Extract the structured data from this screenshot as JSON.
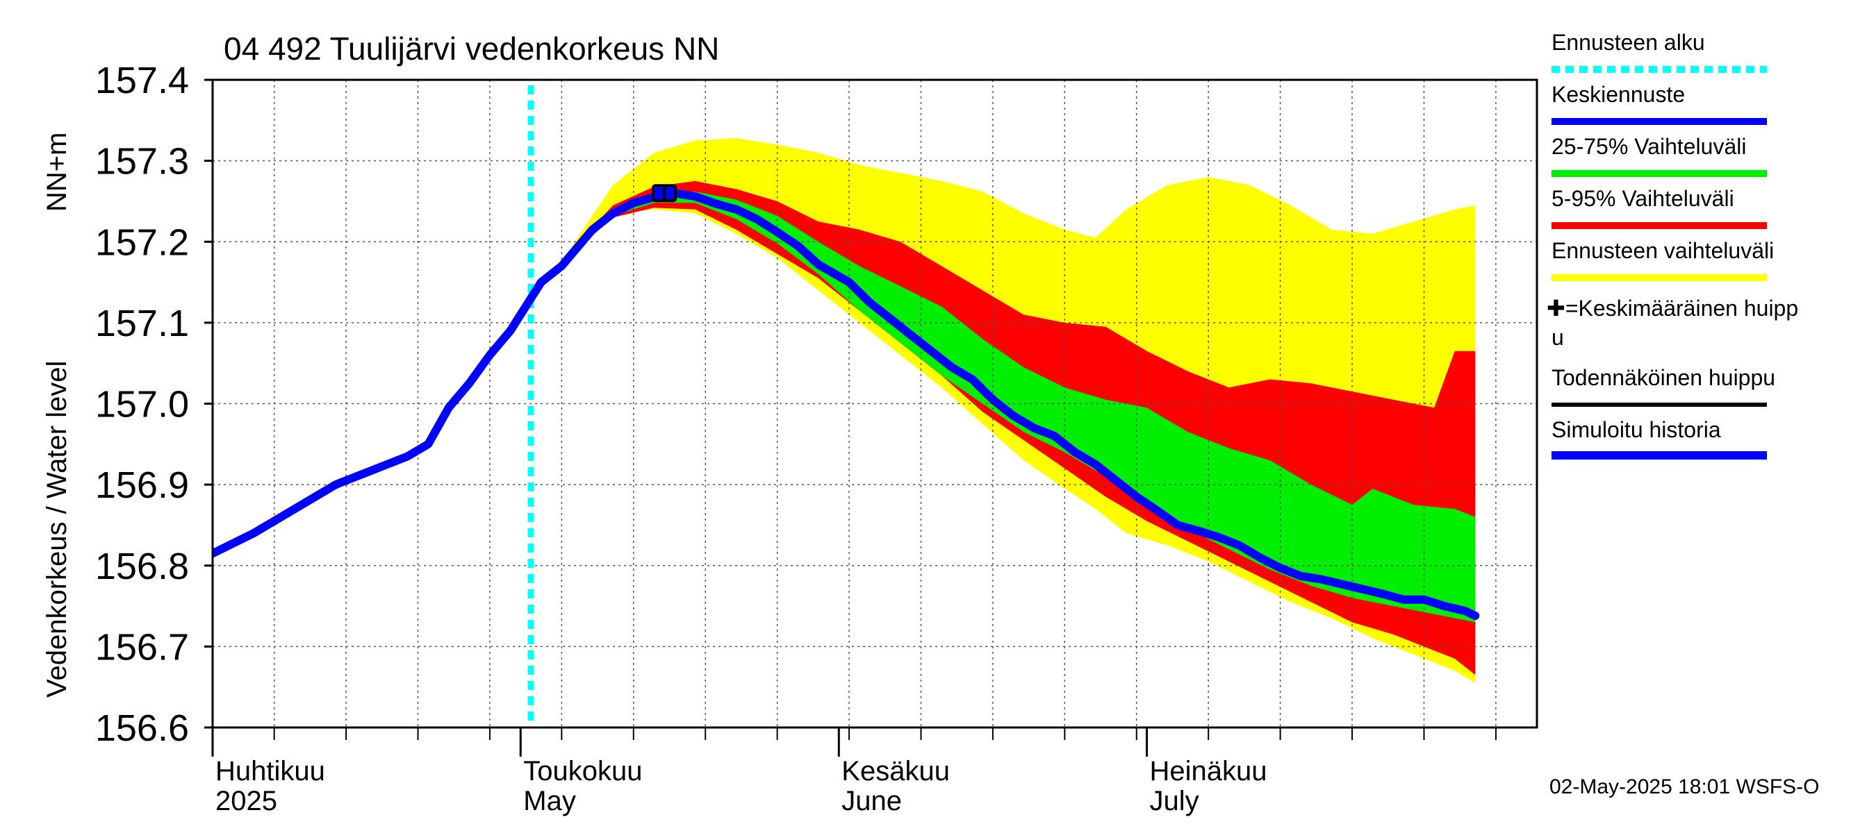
{
  "chart_data": {
    "type": "area",
    "title": "04 492 Tuulijärvi vedenkorkeus NN",
    "ylabel": "Vedenkorkeus / Water level",
    "yunit": "NN+m",
    "ylim": [
      156.6,
      157.4
    ],
    "yticks": [
      "156.6",
      "156.7",
      "156.8",
      "156.9",
      "157.0",
      "157.1",
      "157.2",
      "157.3",
      "157.4"
    ],
    "xlim": [
      "2025-04-01",
      "2025-08-08"
    ],
    "month_labels": [
      {
        "date": "2025-04-01",
        "fi": "Huhtikuu",
        "en": "2025"
      },
      {
        "date": "2025-05-01",
        "fi": "Toukokuu",
        "en": "May"
      },
      {
        "date": "2025-06-01",
        "fi": "Kesäkuu",
        "en": "June"
      },
      {
        "date": "2025-07-01",
        "fi": "Heinäkuu",
        "en": "July"
      }
    ],
    "grid": true,
    "legend_position": "right",
    "forecast_start": "2025-05-02",
    "timestamp": "02-May-2025 18:01 WSFS-O",
    "legend": [
      {
        "label": "Ennusteen alku",
        "color": "#00ffff",
        "style": "dotted"
      },
      {
        "label": "Keskiennuste",
        "color": "#0000ff",
        "style": "solid"
      },
      {
        "label": "25-75% Vaihteluväli",
        "color": "#00ee00",
        "style": "solid"
      },
      {
        "label": "5-95% Vaihteluväli",
        "color": "#ff0000",
        "style": "solid"
      },
      {
        "label": "Ennusteen vaihteluväli",
        "color": "#ffff00",
        "style": "solid"
      },
      {
        "label": "✚=Keskimääräinen huippu",
        "color": "#000000",
        "style": "none"
      },
      {
        "label": "Todennäköinen huippu",
        "color": "#000000",
        "style": "solid"
      },
      {
        "label": "Simuloitu historia",
        "color": "#0000ff",
        "style": "solid"
      }
    ],
    "series": [
      {
        "name": "Simuloitu historia",
        "color": "#0000ff",
        "points": [
          [
            "2025-04-01",
            156.815
          ],
          [
            "2025-04-05",
            156.84
          ],
          [
            "2025-04-09",
            156.87
          ],
          [
            "2025-04-13",
            156.9
          ],
          [
            "2025-04-17",
            156.92
          ],
          [
            "2025-04-20",
            156.935
          ],
          [
            "2025-04-22",
            156.95
          ],
          [
            "2025-04-24",
            156.995
          ],
          [
            "2025-04-26",
            157.025
          ],
          [
            "2025-04-28",
            157.06
          ],
          [
            "2025-04-30",
            157.09
          ],
          [
            "2025-05-02",
            157.13
          ],
          [
            "2025-05-03",
            157.15
          ],
          [
            "2025-05-05",
            157.17
          ],
          [
            "2025-05-06",
            157.185
          ]
        ]
      },
      {
        "name": "Keskiennuste",
        "color": "#0000ff",
        "points": [
          [
            "2025-05-06",
            157.185
          ],
          [
            "2025-05-08",
            157.215
          ],
          [
            "2025-05-10",
            157.235
          ],
          [
            "2025-05-12",
            157.248
          ],
          [
            "2025-05-14",
            157.255
          ],
          [
            "2025-05-16",
            157.26
          ],
          [
            "2025-05-18",
            157.256
          ],
          [
            "2025-05-20",
            157.247
          ],
          [
            "2025-05-22",
            157.24
          ],
          [
            "2025-05-24",
            157.228
          ],
          [
            "2025-05-26",
            157.212
          ],
          [
            "2025-05-28",
            157.195
          ],
          [
            "2025-05-30",
            157.172
          ],
          [
            "2025-06-02",
            157.15
          ],
          [
            "2025-06-04",
            157.125
          ],
          [
            "2025-06-06",
            157.105
          ],
          [
            "2025-06-08",
            157.085
          ],
          [
            "2025-06-10",
            157.065
          ],
          [
            "2025-06-12",
            157.045
          ],
          [
            "2025-06-14",
            157.03
          ],
          [
            "2025-06-16",
            157.005
          ],
          [
            "2025-06-18",
            156.985
          ],
          [
            "2025-06-20",
            156.97
          ],
          [
            "2025-06-22",
            156.96
          ],
          [
            "2025-06-24",
            156.94
          ],
          [
            "2025-06-26",
            156.925
          ],
          [
            "2025-06-28",
            156.905
          ],
          [
            "2025-06-30",
            156.885
          ],
          [
            "2025-07-02",
            156.868
          ],
          [
            "2025-07-04",
            156.85
          ],
          [
            "2025-07-06",
            156.843
          ],
          [
            "2025-07-08",
            156.835
          ],
          [
            "2025-07-10",
            156.825
          ],
          [
            "2025-07-12",
            156.81
          ],
          [
            "2025-07-14",
            156.797
          ],
          [
            "2025-07-16",
            156.787
          ],
          [
            "2025-07-18",
            156.783
          ],
          [
            "2025-07-20",
            156.777
          ],
          [
            "2025-07-22",
            156.771
          ],
          [
            "2025-07-24",
            156.765
          ],
          [
            "2025-07-26",
            156.758
          ],
          [
            "2025-07-28",
            156.758
          ],
          [
            "2025-07-30",
            156.75
          ],
          [
            "2025-08-01",
            156.744
          ],
          [
            "2025-08-02",
            156.738
          ]
        ]
      }
    ],
    "bands": [
      {
        "name": "Ennusteen vaihteluväli",
        "color": "#ffff00",
        "points": [
          [
            "2025-05-06",
            157.195,
            157.185
          ],
          [
            "2025-05-10",
            157.27,
            157.235
          ],
          [
            "2025-05-14",
            157.31,
            157.24
          ],
          [
            "2025-05-18",
            157.325,
            157.235
          ],
          [
            "2025-05-22",
            157.328,
            157.21
          ],
          [
            "2025-05-26",
            157.32,
            157.18
          ],
          [
            "2025-05-30",
            157.31,
            157.14
          ],
          [
            "2025-06-03",
            157.295,
            157.1
          ],
          [
            "2025-06-07",
            157.285,
            157.06
          ],
          [
            "2025-06-11",
            157.275,
            157.02
          ],
          [
            "2025-06-15",
            157.262,
            156.975
          ],
          [
            "2025-06-19",
            157.235,
            156.93
          ],
          [
            "2025-06-23",
            157.215,
            156.895
          ],
          [
            "2025-06-26",
            157.205,
            156.87
          ],
          [
            "2025-06-29",
            157.24,
            156.84
          ],
          [
            "2025-07-03",
            157.27,
            156.825
          ],
          [
            "2025-07-07",
            157.28,
            156.805
          ],
          [
            "2025-07-11",
            157.27,
            156.78
          ],
          [
            "2025-07-15",
            157.245,
            156.755
          ],
          [
            "2025-07-19",
            157.215,
            156.735
          ],
          [
            "2025-07-23",
            157.21,
            156.71
          ],
          [
            "2025-07-27",
            157.225,
            156.69
          ],
          [
            "2025-07-31",
            157.24,
            156.67
          ],
          [
            "2025-08-02",
            157.245,
            156.655
          ]
        ]
      },
      {
        "name": "5-95% Vaihteluväli",
        "color": "#ff0000",
        "points": [
          [
            "2025-05-06",
            157.19,
            157.185
          ],
          [
            "2025-05-10",
            157.245,
            157.23
          ],
          [
            "2025-05-14",
            157.268,
            157.242
          ],
          [
            "2025-05-18",
            157.275,
            157.24
          ],
          [
            "2025-05-22",
            157.265,
            157.215
          ],
          [
            "2025-05-26",
            157.25,
            157.185
          ],
          [
            "2025-05-30",
            157.225,
            157.155
          ],
          [
            "2025-06-03",
            157.215,
            157.115
          ],
          [
            "2025-06-07",
            157.2,
            157.075
          ],
          [
            "2025-06-11",
            157.17,
            157.035
          ],
          [
            "2025-06-15",
            157.14,
            156.99
          ],
          [
            "2025-06-19",
            157.11,
            156.955
          ],
          [
            "2025-06-23",
            157.1,
            156.92
          ],
          [
            "2025-06-27",
            157.095,
            156.885
          ],
          [
            "2025-07-01",
            157.065,
            156.855
          ],
          [
            "2025-07-05",
            157.04,
            156.83
          ],
          [
            "2025-07-09",
            157.02,
            156.805
          ],
          [
            "2025-07-13",
            157.03,
            156.78
          ],
          [
            "2025-07-17",
            157.025,
            156.755
          ],
          [
            "2025-07-21",
            157.015,
            156.73
          ],
          [
            "2025-07-25",
            157.005,
            156.715
          ],
          [
            "2025-07-29",
            156.995,
            156.695
          ],
          [
            "2025-07-31",
            157.065,
            156.685
          ],
          [
            "2025-08-02",
            157.065,
            156.665
          ]
        ]
      },
      {
        "name": "25-75% Vaihteluväli",
        "color": "#00ee00",
        "points": [
          [
            "2025-05-06",
            157.187,
            157.185
          ],
          [
            "2025-05-10",
            157.238,
            157.232
          ],
          [
            "2025-05-14",
            157.26,
            157.248
          ],
          [
            "2025-05-18",
            157.262,
            157.248
          ],
          [
            "2025-05-22",
            157.252,
            157.228
          ],
          [
            "2025-05-26",
            157.232,
            157.198
          ],
          [
            "2025-05-30",
            157.2,
            157.16
          ],
          [
            "2025-06-03",
            157.17,
            157.115
          ],
          [
            "2025-06-07",
            157.145,
            157.075
          ],
          [
            "2025-06-11",
            157.12,
            157.035
          ],
          [
            "2025-06-15",
            157.08,
            157.0
          ],
          [
            "2025-06-19",
            157.045,
            156.965
          ],
          [
            "2025-06-23",
            157.02,
            156.94
          ],
          [
            "2025-06-27",
            157.005,
            156.91
          ],
          [
            "2025-07-01",
            156.995,
            156.878
          ],
          [
            "2025-07-05",
            156.965,
            156.845
          ],
          [
            "2025-07-09",
            156.945,
            156.82
          ],
          [
            "2025-07-13",
            156.93,
            156.795
          ],
          [
            "2025-07-17",
            156.9,
            156.775
          ],
          [
            "2025-07-21",
            156.875,
            156.76
          ],
          [
            "2025-07-23",
            156.895,
            156.755
          ],
          [
            "2025-07-27",
            156.875,
            156.745
          ],
          [
            "2025-07-31",
            156.87,
            156.735
          ],
          [
            "2025-08-02",
            156.86,
            156.73
          ]
        ]
      }
    ],
    "peak_marker": {
      "date": "2025-05-15",
      "value": 157.26
    }
  }
}
